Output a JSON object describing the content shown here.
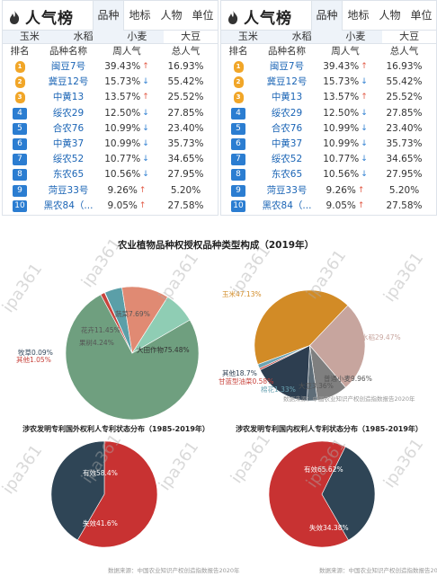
{
  "logo_text": "人气榜",
  "tabs": [
    "品种",
    "地标",
    "人物",
    "单位"
  ],
  "subtabs": [
    "玉米",
    "水稻",
    "小麦",
    "大豆"
  ],
  "headers": [
    "排名",
    "品种名称",
    "周人气",
    "总人气"
  ],
  "rows": [
    {
      "rank": "1",
      "name": "闽豆7号",
      "week": "39.43%",
      "dir": "up",
      "total": "16.93%"
    },
    {
      "rank": "2",
      "name": "冀豆12号",
      "week": "15.73%",
      "dir": "down",
      "total": "55.42%"
    },
    {
      "rank": "3",
      "name": "中黄13",
      "week": "13.57%",
      "dir": "up",
      "total": "25.52%"
    },
    {
      "rank": "4",
      "name": "绥农29",
      "week": "12.50%",
      "dir": "down",
      "total": "27.85%"
    },
    {
      "rank": "5",
      "name": "合农76",
      "week": "10.99%",
      "dir": "down",
      "total": "23.40%"
    },
    {
      "rank": "6",
      "name": "中黄37",
      "week": "10.99%",
      "dir": "down",
      "total": "35.73%"
    },
    {
      "rank": "7",
      "name": "绥农52",
      "week": "10.77%",
      "dir": "down",
      "total": "34.65%"
    },
    {
      "rank": "8",
      "name": "东农65",
      "week": "10.56%",
      "dir": "down",
      "total": "27.95%"
    },
    {
      "rank": "9",
      "name": "菏豆33号",
      "week": "9.26%",
      "dir": "up",
      "total": "5.20%"
    },
    {
      "rank": "10",
      "name": "黑农84（...",
      "week": "9.05%",
      "dir": "up",
      "total": "27.58%"
    }
  ],
  "watermark": "ipa361",
  "chart_data": [
    {
      "type": "pie",
      "title": "农业植物品种权授权品种类型构成（2019年）",
      "slices": [
        {
          "label": "大田作物75.48%",
          "value": 75.48,
          "color": "#6f9f7f"
        },
        {
          "label": "其他1.05%",
          "value": 1.05,
          "color": "#c8433c"
        },
        {
          "label": "牧草0.09%",
          "value": 0.09,
          "color": "#34495e"
        },
        {
          "label": "果树4.24%",
          "value": 4.24,
          "color": "#5b9fa8"
        },
        {
          "label": "花卉11.45%",
          "value": 11.45,
          "color": "#e08a73"
        },
        {
          "label": "蔬菜7.69%",
          "value": 7.69,
          "color": "#8fcdb4"
        }
      ]
    },
    {
      "type": "pie",
      "title": "",
      "slices": [
        {
          "label": "玉米47.13%",
          "value": 47.13,
          "color": "#d28b26"
        },
        {
          "label": "水稻29.47%",
          "value": 29.47,
          "color": "#c7a59e"
        },
        {
          "label": "普通小麦9.96%",
          "value": 9.96,
          "color": "#7f7f7f"
        },
        {
          "label": "大豆3.36%",
          "value": 3.36,
          "color": "#5e6d78"
        },
        {
          "label": "其他18.7%",
          "value": 18.7,
          "color": "#2d3e50"
        },
        {
          "label": "甘蓝型油菜0.58%",
          "value": 0.58,
          "color": "#c8433c"
        },
        {
          "label": "棉花1.33%",
          "value": 1.33,
          "color": "#6aa3b3"
        }
      ],
      "source": "数据来源：中国农业知识产权创造指数报告2020年"
    },
    {
      "type": "pie",
      "title": "涉农发明专利国外权利人专利状态分布（1985-2019年）",
      "slices": [
        {
          "label": "有效58.4%",
          "value": 58.4,
          "color": "#c83232"
        },
        {
          "label": "失效41.6%",
          "value": 41.6,
          "color": "#2f4556"
        }
      ],
      "source": "数据来源：中国农业知识产权创造指数报告2020年"
    },
    {
      "type": "pie",
      "title": "涉农发明专利国内权利人专利状态分布（1985-2019年）",
      "slices": [
        {
          "label": "有效65.62%",
          "value": 65.62,
          "color": "#c83232"
        },
        {
          "label": "失效34.38%",
          "value": 34.38,
          "color": "#2f4556"
        }
      ],
      "source": "数据来源：中国农业知识产权创造指数报告2020年"
    }
  ]
}
